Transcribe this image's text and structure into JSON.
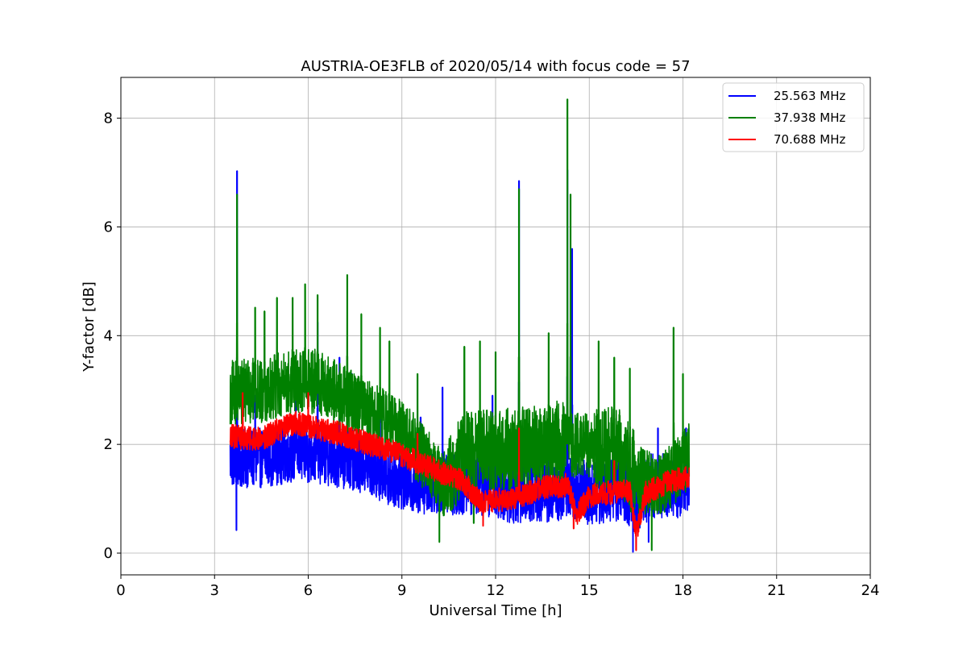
{
  "chart_data": {
    "type": "line",
    "title": "AUSTRIA-OE3FLB of 2020/05/14 with focus code = 57",
    "xlabel": "Universal Time [h]",
    "ylabel": "Y-factor [dB]",
    "xlim": [
      0,
      24
    ],
    "ylim": [
      -0.4,
      8.75
    ],
    "xticks": [
      0,
      3,
      6,
      9,
      12,
      15,
      18,
      21,
      24
    ],
    "yticks": [
      0,
      2,
      4,
      6,
      8
    ],
    "grid": true,
    "legend_position": "top-right",
    "series": [
      {
        "name": "25.563 MHz",
        "color": "#0000ff",
        "baseline": [
          [
            3.5,
            1.75
          ],
          [
            4.5,
            1.75
          ],
          [
            5.5,
            1.85
          ],
          [
            6.5,
            1.8
          ],
          [
            7.5,
            1.7
          ],
          [
            8.5,
            1.45
          ],
          [
            9.5,
            1.25
          ],
          [
            10.5,
            1.3
          ],
          [
            11.5,
            1.3
          ],
          [
            12.5,
            1.15
          ],
          [
            13.5,
            1.15
          ],
          [
            14.3,
            1.2
          ],
          [
            15.0,
            1.1
          ],
          [
            16.0,
            1.2
          ],
          [
            16.5,
            1.0
          ],
          [
            17.0,
            1.25
          ],
          [
            18.2,
            1.25
          ]
        ],
        "spikes": [
          [
            3.72,
            7.03
          ],
          [
            4.3,
            2.9
          ],
          [
            5.6,
            3.1
          ],
          [
            6.3,
            4.25
          ],
          [
            7.0,
            3.6
          ],
          [
            7.4,
            3.3
          ],
          [
            8.3,
            2.6
          ],
          [
            9.6,
            2.5
          ],
          [
            10.3,
            3.05
          ],
          [
            11.9,
            2.9
          ],
          [
            12.75,
            6.85
          ],
          [
            14.3,
            7.05
          ],
          [
            14.45,
            5.6
          ],
          [
            15.8,
            2.3
          ],
          [
            17.2,
            2.3
          ],
          [
            18.1,
            2.3
          ]
        ],
        "dips": [
          [
            3.7,
            0.42
          ],
          [
            16.4,
            0.02
          ],
          [
            16.9,
            0.2
          ]
        ]
      },
      {
        "name": "37.938 MHz",
        "color": "#008000",
        "baseline": [
          [
            3.5,
            2.95
          ],
          [
            4.5,
            3.0
          ],
          [
            5.5,
            3.15
          ],
          [
            6.3,
            3.15
          ],
          [
            7.0,
            2.9
          ],
          [
            8.0,
            2.55
          ],
          [
            9.0,
            2.25
          ],
          [
            10.0,
            1.55
          ],
          [
            10.3,
            1.25
          ],
          [
            11.0,
            1.85
          ],
          [
            12.0,
            1.9
          ],
          [
            13.0,
            1.95
          ],
          [
            14.0,
            2.05
          ],
          [
            14.3,
            2.0
          ],
          [
            15.0,
            2.0
          ],
          [
            16.0,
            1.85
          ],
          [
            16.5,
            1.4
          ],
          [
            17.2,
            1.2
          ],
          [
            17.8,
            1.5
          ],
          [
            18.2,
            1.8
          ]
        ],
        "spikes": [
          [
            3.72,
            6.6
          ],
          [
            4.3,
            4.52
          ],
          [
            4.6,
            4.45
          ],
          [
            5.0,
            4.7
          ],
          [
            5.5,
            4.7
          ],
          [
            5.9,
            4.95
          ],
          [
            6.3,
            4.75
          ],
          [
            7.25,
            5.12
          ],
          [
            7.7,
            4.4
          ],
          [
            8.3,
            4.15
          ],
          [
            8.6,
            3.9
          ],
          [
            9.5,
            3.3
          ],
          [
            11.0,
            3.8
          ],
          [
            11.5,
            3.9
          ],
          [
            12.0,
            3.7
          ],
          [
            12.75,
            6.7
          ],
          [
            13.7,
            4.05
          ],
          [
            14.3,
            8.35
          ],
          [
            14.4,
            6.6
          ],
          [
            15.3,
            3.9
          ],
          [
            15.8,
            3.6
          ],
          [
            16.3,
            3.4
          ],
          [
            17.7,
            4.15
          ],
          [
            18.0,
            3.3
          ]
        ],
        "dips": [
          [
            10.2,
            0.2
          ],
          [
            11.3,
            0.55
          ],
          [
            16.6,
            0.5
          ],
          [
            17.0,
            0.05
          ]
        ]
      },
      {
        "name": "70.688 MHz",
        "color": "#ff0000",
        "baseline": [
          [
            3.5,
            2.15
          ],
          [
            4.5,
            2.1
          ],
          [
            5.0,
            2.25
          ],
          [
            5.6,
            2.4
          ],
          [
            6.2,
            2.3
          ],
          [
            7.0,
            2.2
          ],
          [
            8.0,
            2.0
          ],
          [
            9.0,
            1.8
          ],
          [
            10.0,
            1.55
          ],
          [
            11.0,
            1.3
          ],
          [
            11.5,
            0.95
          ],
          [
            12.5,
            1.0
          ],
          [
            13.5,
            1.2
          ],
          [
            14.3,
            1.25
          ],
          [
            14.6,
            0.7
          ],
          [
            15.0,
            1.05
          ],
          [
            15.5,
            1.1
          ],
          [
            16.3,
            1.15
          ],
          [
            16.5,
            0.35
          ],
          [
            16.8,
            1.1
          ],
          [
            17.5,
            1.3
          ],
          [
            18.2,
            1.4
          ]
        ],
        "spikes": [
          [
            3.9,
            2.95
          ],
          [
            6.0,
            2.95
          ],
          [
            9.5,
            2.2
          ],
          [
            12.75,
            2.3
          ],
          [
            15.8,
            1.7
          ]
        ],
        "dips": [
          [
            11.6,
            0.5
          ],
          [
            14.5,
            0.45
          ],
          [
            16.5,
            0.05
          ]
        ]
      }
    ]
  }
}
